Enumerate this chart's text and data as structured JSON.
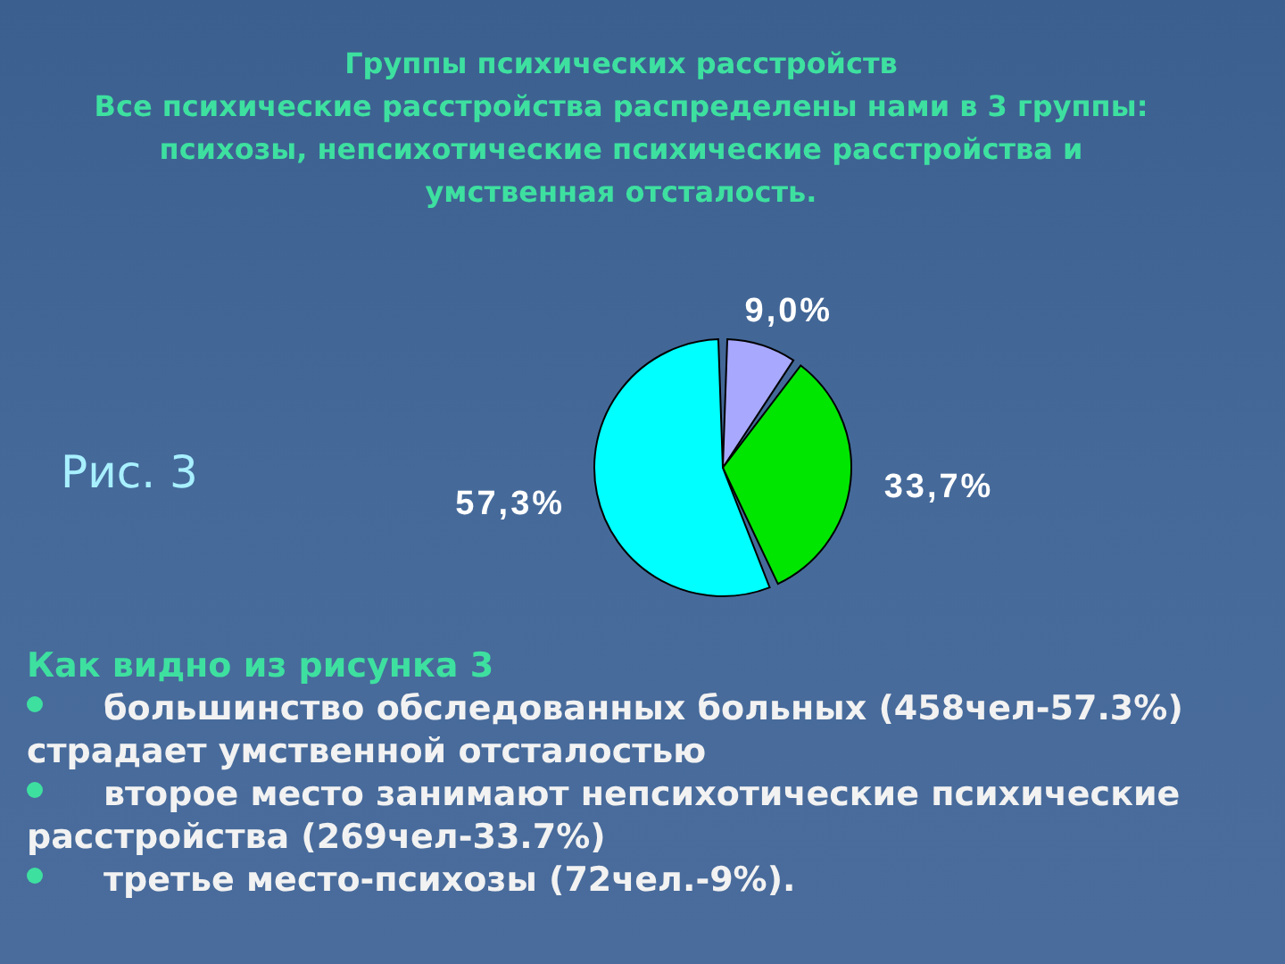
{
  "chart_data": {
    "type": "pie",
    "title": "Группы психических расстройств",
    "subtitle": "Все психические расстройства распределены нами в 3 группы: психозы, непсихотические психические расстройства и умственная отсталость.",
    "categories": [
      null,
      null,
      null
    ],
    "values": [
      9.0,
      33.7,
      57.3
    ],
    "colors": [
      "#a8a8ff",
      "#00e600",
      "#00ffff"
    ],
    "value_labels": [
      "9,0%",
      "33,7%",
      "57,3%"
    ],
    "annotations": [
      "Рис. 3",
      "Как видно из рисунка 3",
      "большинство обследованных больных (458чел-57.3%) страдает умственной отсталостью",
      "второе место занимают непсихотические психические расстройства (269чел-33.7%)",
      "третье место-психозы (72чел.-9%)."
    ]
  }
}
